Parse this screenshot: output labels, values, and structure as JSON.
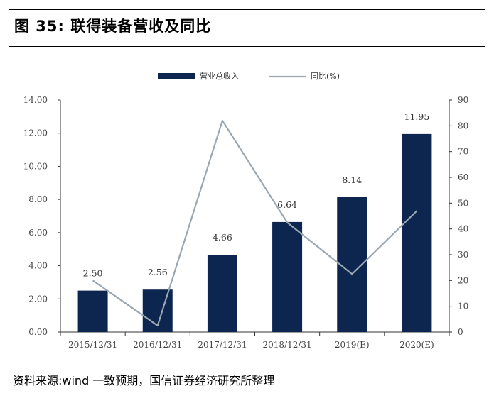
{
  "header": {
    "title": "图  35:  联得装备营收及同比"
  },
  "footer": {
    "source": "资料来源:wind 一致预期，国信证券经济研究所整理"
  },
  "chart_data": {
    "type": "bar",
    "categories": [
      "2015/12/31",
      "2016/12/31",
      "2017/12/31",
      "2018/12/31",
      "2019(E)",
      "2020(E)"
    ],
    "series": [
      {
        "name": "营业总收入",
        "type": "bar",
        "axis": "left",
        "values": [
          2.5,
          2.56,
          4.66,
          6.64,
          8.14,
          11.95
        ],
        "labels": [
          "2.50",
          "2.56",
          "4.66",
          "6.64",
          "8.14",
          "11.95"
        ],
        "color": "#0d2650"
      },
      {
        "name": "同比(%)",
        "type": "line",
        "axis": "right",
        "values": [
          20,
          2.5,
          82,
          42.5,
          22.5,
          47
        ],
        "color": "#9aa6b0"
      }
    ],
    "y_left": {
      "min": 0,
      "max": 14,
      "ticks": [
        "0.00",
        "2.00",
        "4.00",
        "6.00",
        "8.00",
        "10.00",
        "12.00",
        "14.00"
      ]
    },
    "y_right": {
      "min": 0,
      "max": 90,
      "ticks": [
        "0",
        "10",
        "20",
        "30",
        "40",
        "50",
        "60",
        "70",
        "80",
        "90"
      ]
    },
    "legend": "top-center",
    "grid": false
  }
}
